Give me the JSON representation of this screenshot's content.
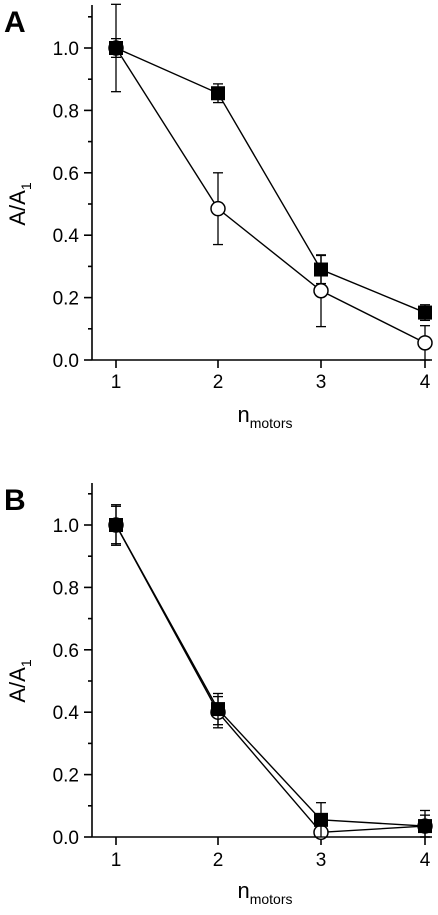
{
  "chart_data": [
    {
      "type": "line",
      "panel_label": "A",
      "x": [
        1,
        2,
        3,
        4
      ],
      "xlim": [
        0.75,
        4.2
      ],
      "ylim": [
        0,
        1.15
      ],
      "xticks": [
        "1",
        "2",
        "3",
        "4"
      ],
      "yticks": [
        "0.0",
        "0.2",
        "0.4",
        "0.6",
        "0.8",
        "1.0"
      ],
      "xlabel": "n",
      "xlabel_sub": "motors",
      "ylabel": "A/A",
      "ylabel_sub": "1",
      "series": [
        {
          "marker": "open-circle",
          "values": [
            1.0,
            0.485,
            0.222,
            0.055
          ],
          "errors": [
            0.14,
            0.115,
            0.115,
            0.055
          ]
        },
        {
          "marker": "filled-square",
          "values": [
            1.0,
            0.855,
            0.29,
            0.152
          ],
          "errors": [
            0.03,
            0.03,
            0.045,
            0.025
          ]
        }
      ]
    },
    {
      "type": "line",
      "panel_label": "B",
      "x": [
        1,
        2,
        3,
        4
      ],
      "xlim": [
        0.75,
        4.2
      ],
      "ylim": [
        0,
        1.15
      ],
      "xticks": [
        "1",
        "2",
        "3",
        "4"
      ],
      "yticks": [
        "0.0",
        "0.2",
        "0.4",
        "0.6",
        "0.8",
        "1.0"
      ],
      "xlabel": "n",
      "xlabel_sub": "motors",
      "ylabel": "A/A",
      "ylabel_sub": "1",
      "series": [
        {
          "marker": "open-circle",
          "values": [
            1.0,
            0.4,
            0.015,
            0.035
          ],
          "errors": [
            0.065,
            0.05,
            0.035,
            0.035
          ]
        },
        {
          "marker": "filled-square",
          "values": [
            1.0,
            0.41,
            0.055,
            0.035
          ],
          "errors": [
            0.06,
            0.05,
            0.055,
            0.05
          ]
        }
      ]
    }
  ]
}
